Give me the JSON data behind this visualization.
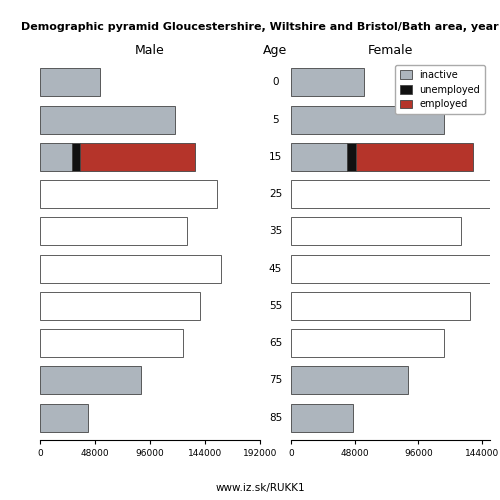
{
  "title": "Demographic pyramid Gloucestershire, Wiltshire and Bristol/Bath area, year",
  "subtitle": "www.iz.sk/RUKK1",
  "age_labels": [
    85,
    75,
    65,
    55,
    45,
    35,
    25,
    15,
    5,
    0
  ],
  "male_inactive": [
    42000,
    88000,
    125000,
    140000,
    158000,
    128000,
    155000,
    28000,
    118000,
    52000
  ],
  "male_unemployed": [
    0,
    0,
    0,
    0,
    0,
    0,
    0,
    7000,
    0,
    0
  ],
  "male_employed": [
    0,
    0,
    0,
    0,
    0,
    0,
    0,
    100000,
    0,
    0
  ],
  "female_inactive": [
    47000,
    88000,
    115000,
    135000,
    160000,
    128000,
    155000,
    42000,
    115000,
    55000
  ],
  "female_unemployed": [
    0,
    0,
    0,
    0,
    0,
    0,
    0,
    7000,
    0,
    0
  ],
  "female_employed": [
    0,
    0,
    0,
    0,
    0,
    0,
    0,
    88000,
    0,
    0
  ],
  "male_xlim": 192000,
  "female_xlim": 150000,
  "color_inactive": "#adb5bd",
  "color_unemployed": "#111111",
  "color_employed": "#b5342a",
  "color_white_bar": "#ffffff",
  "bar_edgecolor": "#444444",
  "bar_height": 0.75,
  "male_xtick_vals": [
    0,
    48000,
    96000,
    144000,
    192000
  ],
  "male_xtick_labels": [
    "0",
    "48000",
    "96000",
    "144000",
    "192000"
  ],
  "female_xtick_vals": [
    0,
    48000,
    96000,
    144000
  ],
  "female_xtick_labels": [
    "0",
    "48000",
    "96000",
    "144000"
  ],
  "legend_labels": [
    "inactive",
    "unemployed",
    "employed"
  ],
  "legend_colors": [
    "#adb5bd",
    "#111111",
    "#b5342a"
  ],
  "white_bar_ages": [
    65,
    55,
    45,
    35,
    25
  ],
  "grey_bar_ages": [
    85,
    75,
    5,
    0
  ],
  "stacked_ages": [
    15
  ]
}
